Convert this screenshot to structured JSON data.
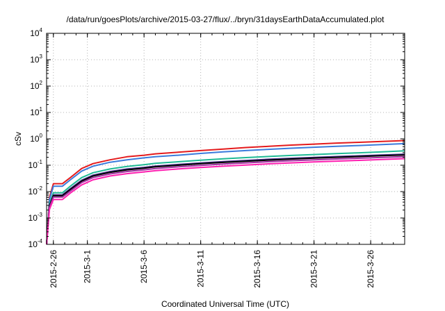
{
  "chart_data": {
    "type": "line",
    "title": "/data/run/goesPlots/archive/2015-03-27/flux/../bryn/31daysEarthDataAccumulated.plot",
    "xlabel": "Coordinated Universal Time (UTC)",
    "ylabel": "cSv",
    "yscale": "log",
    "ylim": [
      0.0001,
      10000
    ],
    "xlim": [
      -0.6,
      31
    ],
    "grid": true,
    "x_ticks": [
      {
        "label": "2015-2-26",
        "day": 0
      },
      {
        "label": "2015-3-1",
        "day": 3
      },
      {
        "label": "2015-3-6",
        "day": 8
      },
      {
        "label": "2015-3-11",
        "day": 13
      },
      {
        "label": "2015-3-16",
        "day": 18
      },
      {
        "label": "2015-3-21",
        "day": 23
      },
      {
        "label": "2015-3-26",
        "day": 28
      }
    ],
    "y_ticks": [
      {
        "base": "10",
        "exp": "-4",
        "value": 0.0001
      },
      {
        "base": "10",
        "exp": "-3",
        "value": 0.001
      },
      {
        "base": "10",
        "exp": "-2",
        "value": 0.01
      },
      {
        "base": "10",
        "exp": "-1",
        "value": 0.1
      },
      {
        "base": "10",
        "exp": "0",
        "value": 1
      },
      {
        "base": "10",
        "exp": "1",
        "value": 10
      },
      {
        "base": "10",
        "exp": "2",
        "value": 100
      },
      {
        "base": "10",
        "exp": "3",
        "value": 1000
      },
      {
        "base": "10",
        "exp": "4",
        "value": 10000
      }
    ],
    "x_days": [
      -0.6,
      -0.35,
      0.0,
      0.3,
      0.8,
      1.5,
      2.5,
      3.5,
      5,
      6.5,
      8,
      9,
      11,
      13,
      15,
      17,
      19,
      21,
      23,
      25,
      27,
      29,
      31
    ],
    "series": [
      {
        "color": "#e41a1c",
        "values": [
          0.0001,
          0.006,
          0.02,
          0.02,
          0.02,
          0.034,
          0.075,
          0.115,
          0.16,
          0.21,
          0.24,
          0.27,
          0.31,
          0.36,
          0.41,
          0.47,
          0.52,
          0.58,
          0.63,
          0.69,
          0.74,
          0.8,
          0.86
        ]
      },
      {
        "color": "#3a7bdc",
        "values": [
          0.0001,
          0.005,
          0.016,
          0.016,
          0.016,
          0.028,
          0.06,
          0.092,
          0.13,
          0.16,
          0.19,
          0.21,
          0.24,
          0.28,
          0.32,
          0.36,
          0.4,
          0.44,
          0.48,
          0.52,
          0.56,
          0.61,
          0.66
        ]
      },
      {
        "color": "#1fb995",
        "values": [
          0.0001,
          0.0035,
          0.009,
          0.009,
          0.009,
          0.016,
          0.034,
          0.052,
          0.072,
          0.09,
          0.105,
          0.118,
          0.135,
          0.155,
          0.175,
          0.195,
          0.215,
          0.235,
          0.255,
          0.275,
          0.295,
          0.32,
          0.35
        ]
      },
      {
        "color": "#4d2f8f",
        "values": [
          0.0001,
          0.003,
          0.0075,
          0.0075,
          0.0075,
          0.013,
          0.027,
          0.042,
          0.058,
          0.072,
          0.083,
          0.093,
          0.107,
          0.122,
          0.137,
          0.152,
          0.168,
          0.183,
          0.198,
          0.213,
          0.228,
          0.245,
          0.262
        ]
      },
      {
        "color": "#000000",
        "values": [
          0.0001,
          0.0028,
          0.007,
          0.007,
          0.007,
          0.012,
          0.025,
          0.039,
          0.054,
          0.067,
          0.077,
          0.087,
          0.1,
          0.114,
          0.128,
          0.142,
          0.157,
          0.171,
          0.185,
          0.199,
          0.213,
          0.229,
          0.245
        ]
      },
      {
        "color": "#9e2f9f",
        "values": [
          0.0001,
          0.0025,
          0.0062,
          0.0062,
          0.0062,
          0.0105,
          0.022,
          0.034,
          0.047,
          0.058,
          0.067,
          0.075,
          0.087,
          0.099,
          0.111,
          0.123,
          0.136,
          0.148,
          0.16,
          0.172,
          0.184,
          0.198,
          0.212
        ]
      },
      {
        "color": "#ff1fb0",
        "values": [
          0.0001,
          0.0021,
          0.005,
          0.005,
          0.005,
          0.0088,
          0.018,
          0.028,
          0.039,
          0.048,
          0.056,
          0.062,
          0.072,
          0.082,
          0.092,
          0.102,
          0.113,
          0.123,
          0.133,
          0.143,
          0.153,
          0.165,
          0.178
        ]
      }
    ]
  }
}
